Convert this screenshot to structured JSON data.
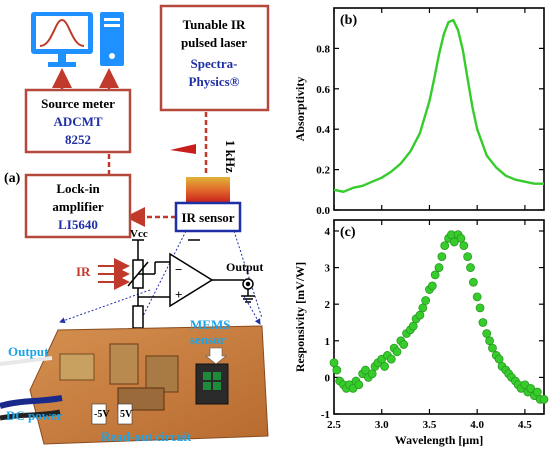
{
  "colors": {
    "box_border": "#b5483a",
    "blue_text": "#1f2fa6",
    "green_line": "#36cc2c",
    "dashed_arrow": "#c0392b",
    "monitor_blue": "#1e90ff",
    "pcb": "#c87a3a"
  },
  "panel_a": {
    "label": "(a)",
    "laser": {
      "line1": "Tunable IR",
      "line2": "pulsed laser",
      "line3": "Spectra-",
      "line4": "Physics®"
    },
    "source_meter": {
      "line1": "Source meter",
      "line2": "ADCMT",
      "line3": "8252"
    },
    "lockin": {
      "line1": "Lock-in",
      "line2": "amplifier",
      "line3": "LI5640"
    },
    "ir_sensor": "IR sensor",
    "freq": "1 kHz",
    "vcc": "Vcc",
    "ir": "IR",
    "output": "Output",
    "photo_output": "Output",
    "photo_dc": "DC power",
    "photo_mems": "MEMS",
    "photo_sensor": "sensor",
    "photo_readout": "Read-out circuit",
    "photo_5v_left": "-5V",
    "photo_5v_right": "5V",
    "icons": [
      "monitor-icon",
      "computer-tower-icon",
      "op-amp-icon",
      "ground-icon"
    ]
  },
  "chart_data": [
    {
      "panel": "(b)",
      "type": "line",
      "xlabel": "",
      "ylabel": "Absorptivity",
      "xlim": [
        2.5,
        4.7
      ],
      "ylim": [
        0.0,
        1.0
      ],
      "x_ticks": [
        2.5,
        3.0,
        3.5,
        4.0,
        4.5
      ],
      "y_ticks": [
        0.0,
        0.2,
        0.4,
        0.6,
        0.8
      ],
      "y_tick_labels": [
        "0.0",
        "0.2",
        "0.4",
        "0.6",
        "0.8"
      ],
      "series": [
        {
          "x": [
            2.5,
            2.6,
            2.7,
            2.8,
            2.9,
            3.0,
            3.1,
            3.2,
            3.3,
            3.4,
            3.5,
            3.55,
            3.6,
            3.65,
            3.7,
            3.75,
            3.8,
            3.85,
            3.9,
            3.95,
            4.0,
            4.1,
            4.2,
            4.3,
            4.4,
            4.5,
            4.6,
            4.7
          ],
          "values": [
            0.1,
            0.09,
            0.11,
            0.12,
            0.14,
            0.16,
            0.19,
            0.23,
            0.29,
            0.38,
            0.54,
            0.65,
            0.77,
            0.87,
            0.93,
            0.94,
            0.89,
            0.79,
            0.65,
            0.51,
            0.4,
            0.27,
            0.21,
            0.17,
            0.15,
            0.14,
            0.13,
            0.13
          ]
        }
      ]
    },
    {
      "panel": "(c)",
      "type": "scatter",
      "xlabel": "Wavelength [μm]",
      "ylabel": "Responsivity [mV/W]",
      "xlim": [
        2.5,
        4.7
      ],
      "ylim": [
        -1,
        4.3
      ],
      "x_ticks": [
        2.5,
        3.0,
        3.5,
        4.0,
        4.5
      ],
      "x_tick_labels": [
        "2.5",
        "3.0",
        "3.5",
        "4.0",
        "4.5"
      ],
      "y_ticks": [
        -1,
        0,
        1,
        2,
        3,
        4
      ],
      "y_tick_labels": [
        "-1",
        "0",
        "1",
        "2",
        "3",
        "4"
      ],
      "series": [
        {
          "x": [
            2.5,
            2.53,
            2.56,
            2.6,
            2.63,
            2.66,
            2.7,
            2.73,
            2.76,
            2.8,
            2.83,
            2.86,
            2.9,
            2.93,
            2.96,
            3.0,
            3.03,
            3.06,
            3.1,
            3.13,
            3.16,
            3.2,
            3.23,
            3.26,
            3.3,
            3.33,
            3.36,
            3.4,
            3.43,
            3.46,
            3.5,
            3.53,
            3.56,
            3.6,
            3.63,
            3.66,
            3.7,
            3.73,
            3.76,
            3.8,
            3.83,
            3.86,
            3.9,
            3.93,
            3.96,
            4.0,
            4.03,
            4.06,
            4.1,
            4.13,
            4.16,
            4.2,
            4.23,
            4.26,
            4.3,
            4.33,
            4.36,
            4.4,
            4.43,
            4.46,
            4.5,
            4.53,
            4.56,
            4.6,
            4.63,
            4.66,
            4.7
          ],
          "values": [
            0.4,
            0.2,
            -0.1,
            -0.2,
            -0.3,
            -0.2,
            -0.3,
            -0.1,
            -0.2,
            0.1,
            0.2,
            0.0,
            0.1,
            0.3,
            0.4,
            0.5,
            0.3,
            0.6,
            0.5,
            0.8,
            0.7,
            1.0,
            0.9,
            1.2,
            1.3,
            1.4,
            1.6,
            1.7,
            1.9,
            2.1,
            2.4,
            2.5,
            2.8,
            3.0,
            3.3,
            3.6,
            3.8,
            3.9,
            3.7,
            3.9,
            3.8,
            3.6,
            3.3,
            3.0,
            2.6,
            2.2,
            1.9,
            1.5,
            1.2,
            1.0,
            0.8,
            0.6,
            0.5,
            0.3,
            0.2,
            0.1,
            0.0,
            -0.1,
            -0.2,
            -0.3,
            -0.2,
            -0.4,
            -0.3,
            -0.5,
            -0.4,
            -0.6,
            -0.6
          ]
        }
      ]
    }
  ]
}
